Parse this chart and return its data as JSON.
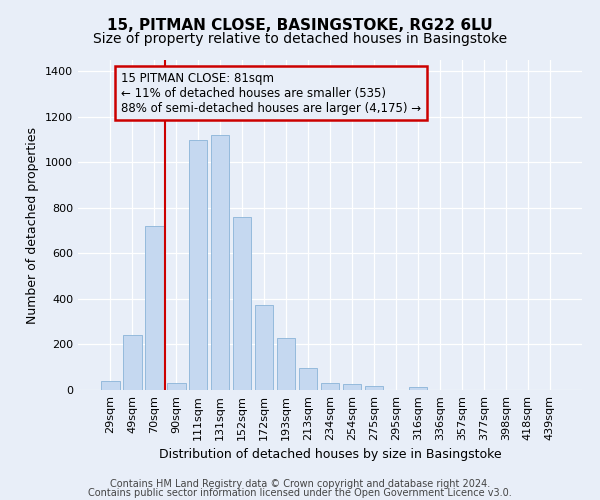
{
  "title": "15, PITMAN CLOSE, BASINGSTOKE, RG22 6LU",
  "subtitle": "Size of property relative to detached houses in Basingstoke",
  "xlabel": "Distribution of detached houses by size in Basingstoke",
  "ylabel": "Number of detached properties",
  "categories": [
    "29sqm",
    "49sqm",
    "70sqm",
    "90sqm",
    "111sqm",
    "131sqm",
    "152sqm",
    "172sqm",
    "193sqm",
    "213sqm",
    "234sqm",
    "254sqm",
    "275sqm",
    "295sqm",
    "316sqm",
    "336sqm",
    "357sqm",
    "377sqm",
    "398sqm",
    "418sqm",
    "439sqm"
  ],
  "values": [
    38,
    240,
    720,
    30,
    1100,
    1120,
    760,
    375,
    228,
    95,
    32,
    25,
    18,
    0,
    12,
    0,
    0,
    0,
    0,
    0,
    0
  ],
  "bar_color": "#c5d8f0",
  "bar_edge_color": "#8ab4d8",
  "vline_color": "#cc0000",
  "vline_pos": 2.5,
  "annotation_text": "15 PITMAN CLOSE: 81sqm\n← 11% of detached houses are smaller (535)\n88% of semi-detached houses are larger (4,175) →",
  "annotation_box_edgecolor": "#cc0000",
  "ylim": [
    0,
    1450
  ],
  "yticks": [
    0,
    200,
    400,
    600,
    800,
    1000,
    1200,
    1400
  ],
  "footer_line1": "Contains HM Land Registry data © Crown copyright and database right 2024.",
  "footer_line2": "Contains public sector information licensed under the Open Government Licence v3.0.",
  "background_color": "#e8eef8",
  "grid_color": "#ffffff",
  "title_fontsize": 11,
  "subtitle_fontsize": 10,
  "ylabel_fontsize": 9,
  "xlabel_fontsize": 9,
  "tick_fontsize": 8,
  "annotation_fontsize": 8.5,
  "footer_fontsize": 7
}
